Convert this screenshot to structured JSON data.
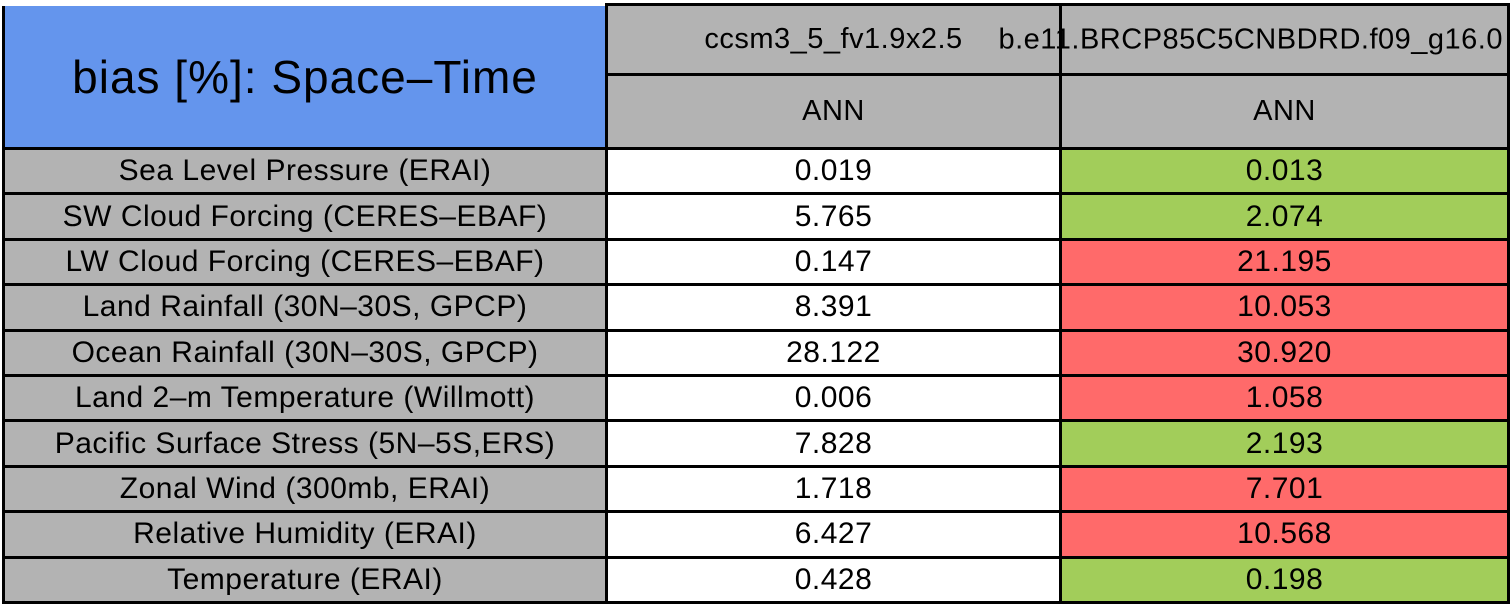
{
  "title": "bias [%]: Space–Time",
  "colors": {
    "title_blue": "#6495ed",
    "header_gray": "#b3b3b3",
    "grid_black": "#000000",
    "cell_white": "#ffffff",
    "green_cell": "#a2cd5a",
    "red_cell": "#ff6a6a"
  },
  "chart_data": {
    "type": "table",
    "title": "bias [%]: Space–Time",
    "column_groups": [
      {
        "model": "ccsm3_5_fv1.9x2.5",
        "season": "ANN"
      },
      {
        "model": "b.e11.BRCP85C5CNBDRD.f09_g16.0",
        "season": "ANN"
      }
    ],
    "rows": [
      {
        "label": "Sea Level Pressure (ERAI)",
        "case1": "0.019",
        "case2": "0.013",
        "case2_color": "green"
      },
      {
        "label": "SW Cloud Forcing (CERES–EBAF)",
        "case1": "5.765",
        "case2": "2.074",
        "case2_color": "green"
      },
      {
        "label": "LW Cloud Forcing (CERES–EBAF)",
        "case1": "0.147",
        "case2": "21.195",
        "case2_color": "red"
      },
      {
        "label": "Land Rainfall (30N–30S, GPCP)",
        "case1": "8.391",
        "case2": "10.053",
        "case2_color": "red"
      },
      {
        "label": "Ocean Rainfall (30N–30S, GPCP)",
        "case1": "28.122",
        "case2": "30.920",
        "case2_color": "red"
      },
      {
        "label": "Land 2–m Temperature (Willmott)",
        "case1": "0.006",
        "case2": "1.058",
        "case2_color": "red"
      },
      {
        "label": "Pacific Surface Stress (5N–5S,ERS)",
        "case1": "7.828",
        "case2": "2.193",
        "case2_color": "green"
      },
      {
        "label": "Zonal Wind (300mb, ERAI)",
        "case1": "1.718",
        "case2": "7.701",
        "case2_color": "red"
      },
      {
        "label": "Relative Humidity (ERAI)",
        "case1": "6.427",
        "case2": "10.568",
        "case2_color": "red"
      },
      {
        "label": "Temperature (ERAI)",
        "case1": "0.428",
        "case2": "0.198",
        "case2_color": "green"
      }
    ],
    "layout_hints": {
      "grid": true,
      "case1_cells_background": "white",
      "case2_cells_background": "green or red by value"
    }
  }
}
